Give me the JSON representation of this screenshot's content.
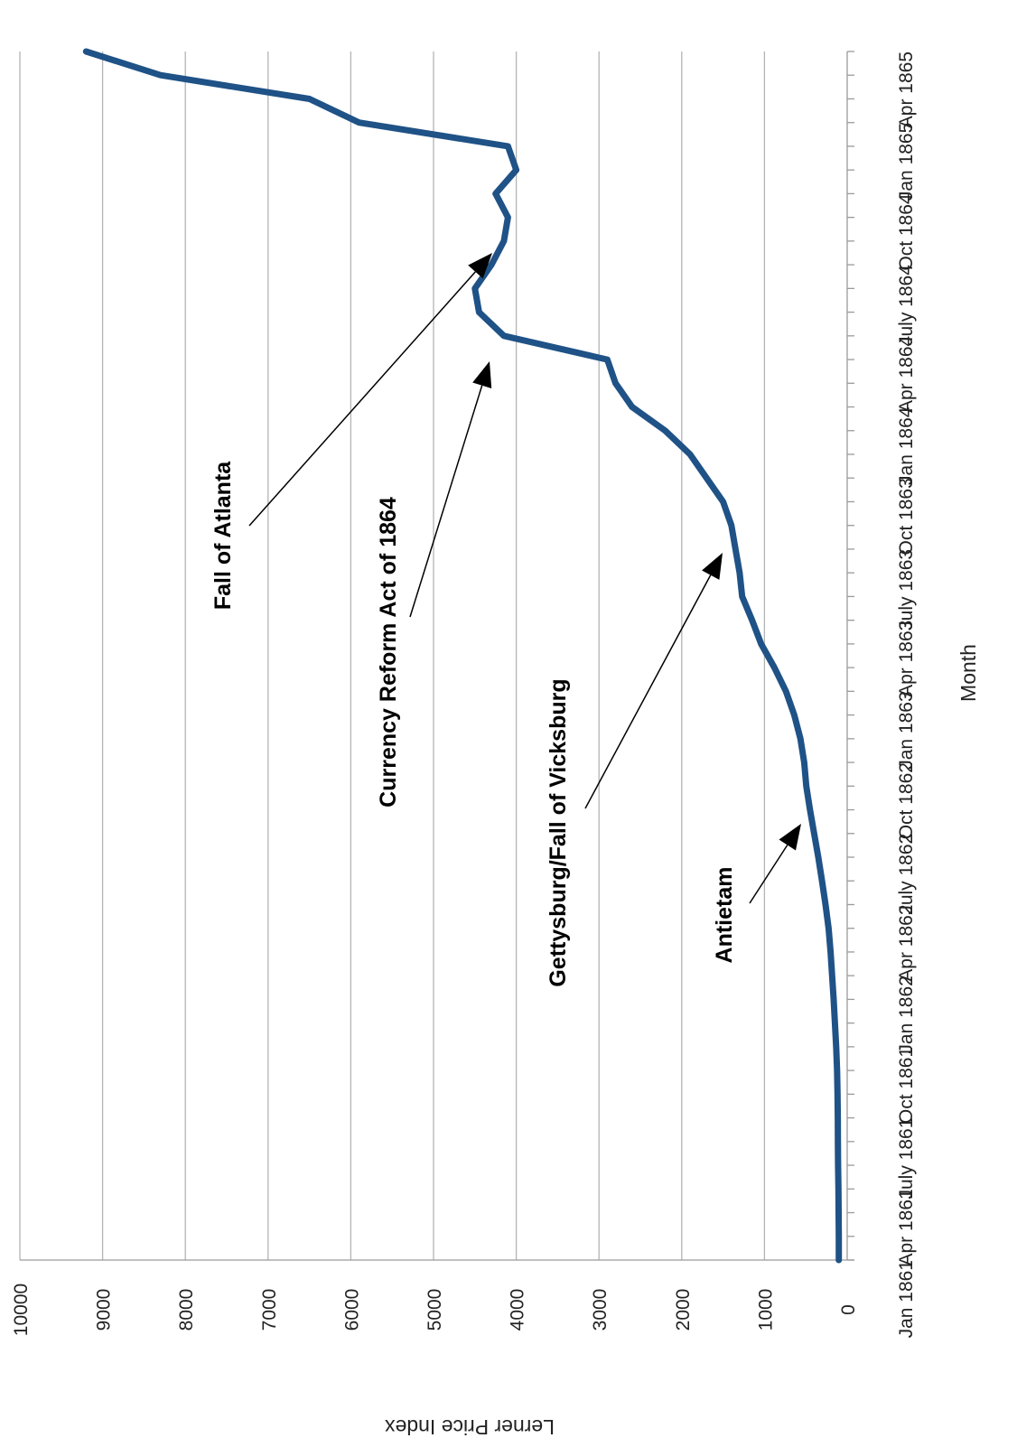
{
  "chart_data": {
    "type": "line",
    "title": "",
    "xlabel": "Month",
    "ylabel": "Lerner Price Index",
    "ylim": [
      0,
      10000
    ],
    "y_ticks": [
      "0",
      "1000",
      "2000",
      "3000",
      "4000",
      "5000",
      "6000",
      "7000",
      "8000",
      "9000",
      "10000"
    ],
    "x_ticks": [
      "Jan 1861",
      "Apr 1861",
      "July 1861",
      "Oct 1861",
      "Jan 1862",
      "Apr 1862",
      "July 1862",
      "Oct 1862",
      "Jan 1863",
      "Apr 1863",
      "July 1863",
      "Oct 1863",
      "Jan 1864",
      "Apr 1864",
      "July 1864",
      "Oct 1864",
      "Jan 1865",
      "Apr 1865"
    ],
    "x_range": [
      "1861-01",
      "1865-04"
    ],
    "grid": true,
    "legend": "none",
    "series": [
      {
        "name": "",
        "color": "#1f5286",
        "x": [
          "1861-01",
          "1861-02",
          "1861-03",
          "1861-04",
          "1861-05",
          "1861-06",
          "1861-07",
          "1861-08",
          "1861-09",
          "1861-10",
          "1861-11",
          "1861-12",
          "1862-01",
          "1862-02",
          "1862-03",
          "1862-04",
          "1862-05",
          "1862-06",
          "1862-07",
          "1862-08",
          "1862-09",
          "1862-10",
          "1862-11",
          "1862-12",
          "1863-01",
          "1863-02",
          "1863-03",
          "1863-04",
          "1863-05",
          "1863-06",
          "1863-07",
          "1863-08",
          "1863-09",
          "1863-10",
          "1863-11",
          "1863-12",
          "1864-01",
          "1864-02",
          "1864-03",
          "1864-04",
          "1864-05",
          "1864-06",
          "1864-07",
          "1864-08",
          "1864-09",
          "1864-10",
          "1864-11",
          "1864-12",
          "1865-01",
          "1865-02",
          "1865-03",
          "1865-04"
        ],
        "values": [
          101,
          102,
          104,
          106,
          110,
          112,
          114,
          117,
          122,
          133,
          148,
          164,
          182,
          201,
          225,
          262,
          305,
          349,
          400,
          450,
          495,
          520,
          565,
          640,
          740,
          880,
          1040,
          1150,
          1270,
          1300,
          1350,
          1400,
          1500,
          1700,
          1900,
          2200,
          2600,
          2800,
          2900,
          4150,
          4450,
          4500,
          4300,
          4150,
          4100,
          4250,
          4000,
          4100,
          5900,
          6500,
          8300,
          9200
        ]
      }
    ],
    "annotations": [
      {
        "text": "Fall of Atlanta",
        "x": "1864-07",
        "y": 4250
      },
      {
        "text": "Currency Reform Act of 1864",
        "x": "1864-04",
        "y": 4150
      },
      {
        "text": "Gettysburg/Fall of Vicksburg",
        "x": "1863-08",
        "y": 1480
      },
      {
        "text": "Antietam",
        "x": "1862-09",
        "y": 530
      }
    ]
  }
}
